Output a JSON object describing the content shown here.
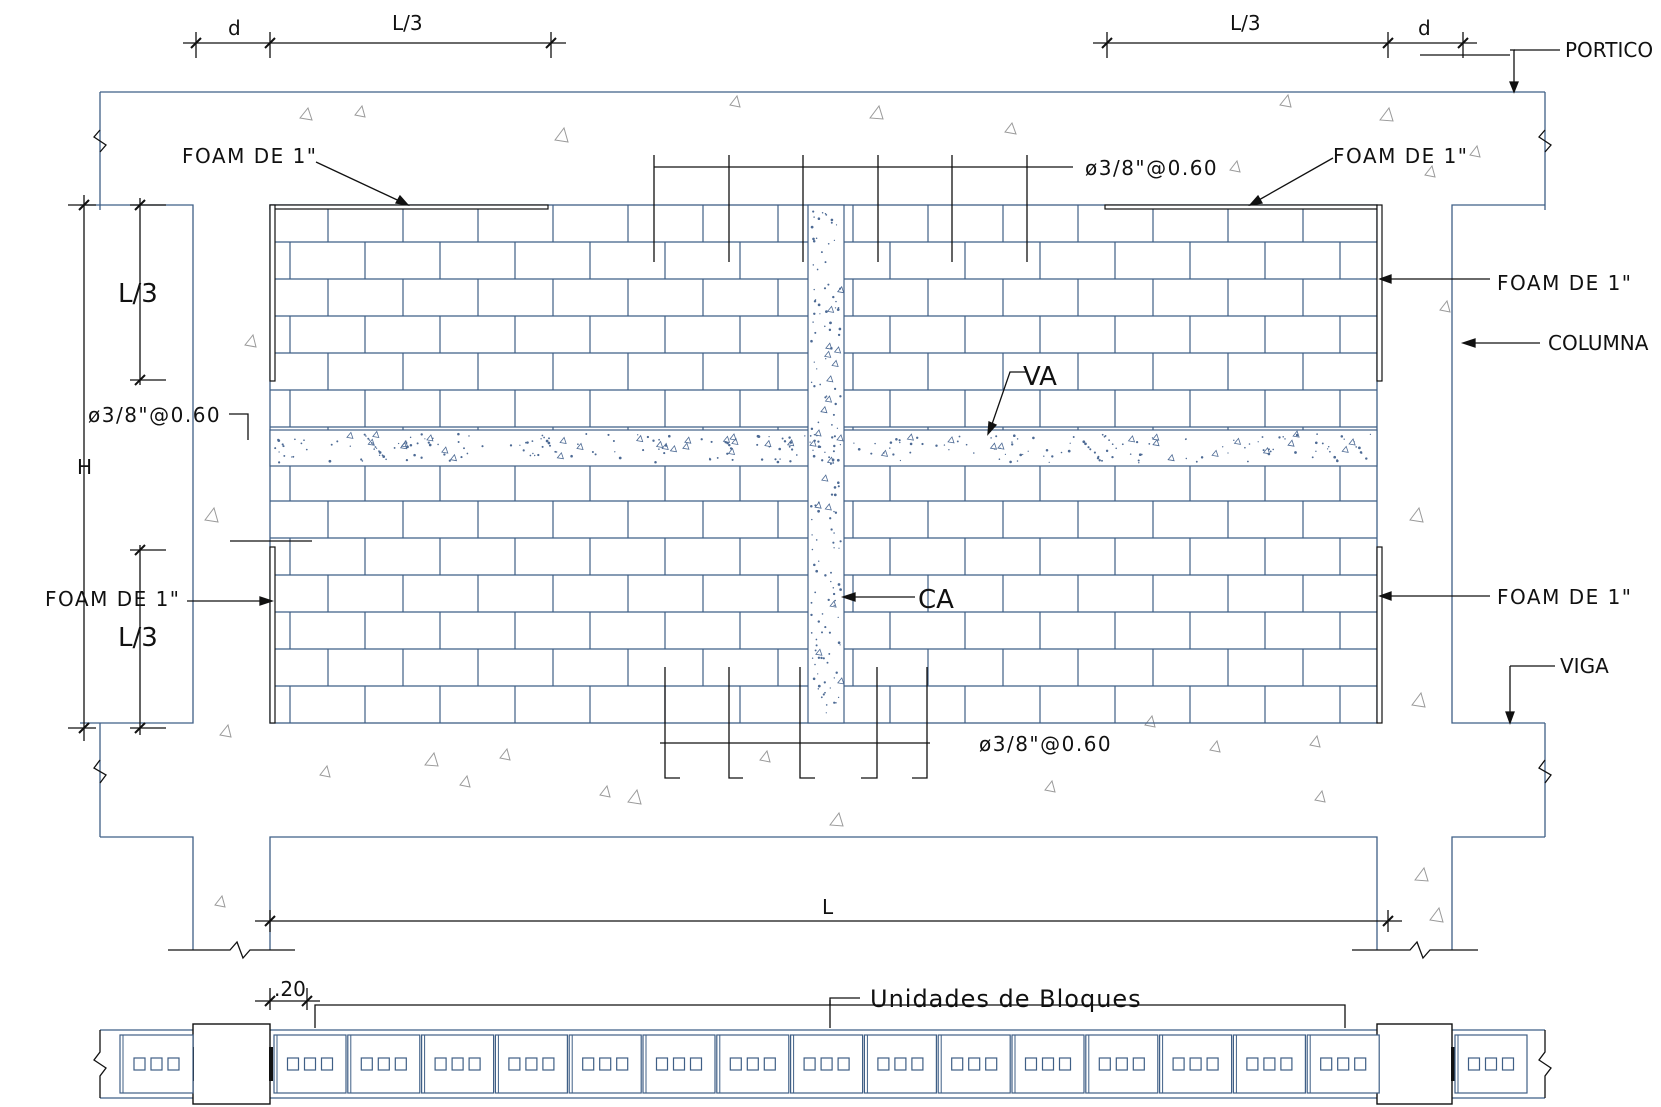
{
  "drawing": {
    "labels": {
      "portico": "PORTICO",
      "columna": "COLUMNA",
      "viga": "VIGA",
      "foam_top_left": "FOAM  DE  1\"",
      "foam_top_right": "FOAM  DE  1\"",
      "foam_right_upper": "FOAM  DE  1\"",
      "foam_right_lower": "FOAM  DE  1\"",
      "foam_left": "FOAM  DE  1\"",
      "rebar_top": "ø3/8\"@0.60",
      "rebar_left": "ø3/8\"@0.60",
      "rebar_bottom": "ø3/8\"@0.60",
      "va": "VA",
      "ca": "CA",
      "unidades": "Unidades de Bloques"
    },
    "dimensions": {
      "d_left": "d",
      "l3_top_left": "L/3",
      "l3_top_right": "L/3",
      "d_right": "d",
      "l3_left_upper": "L/3",
      "l3_left_lower": "L/3",
      "h": "H",
      "l": "L",
      "block_width": ".20"
    }
  },
  "colors": {
    "concrete_line": "#3f5f86",
    "ink": "#111111",
    "aggregate": "#9a9a9a"
  }
}
